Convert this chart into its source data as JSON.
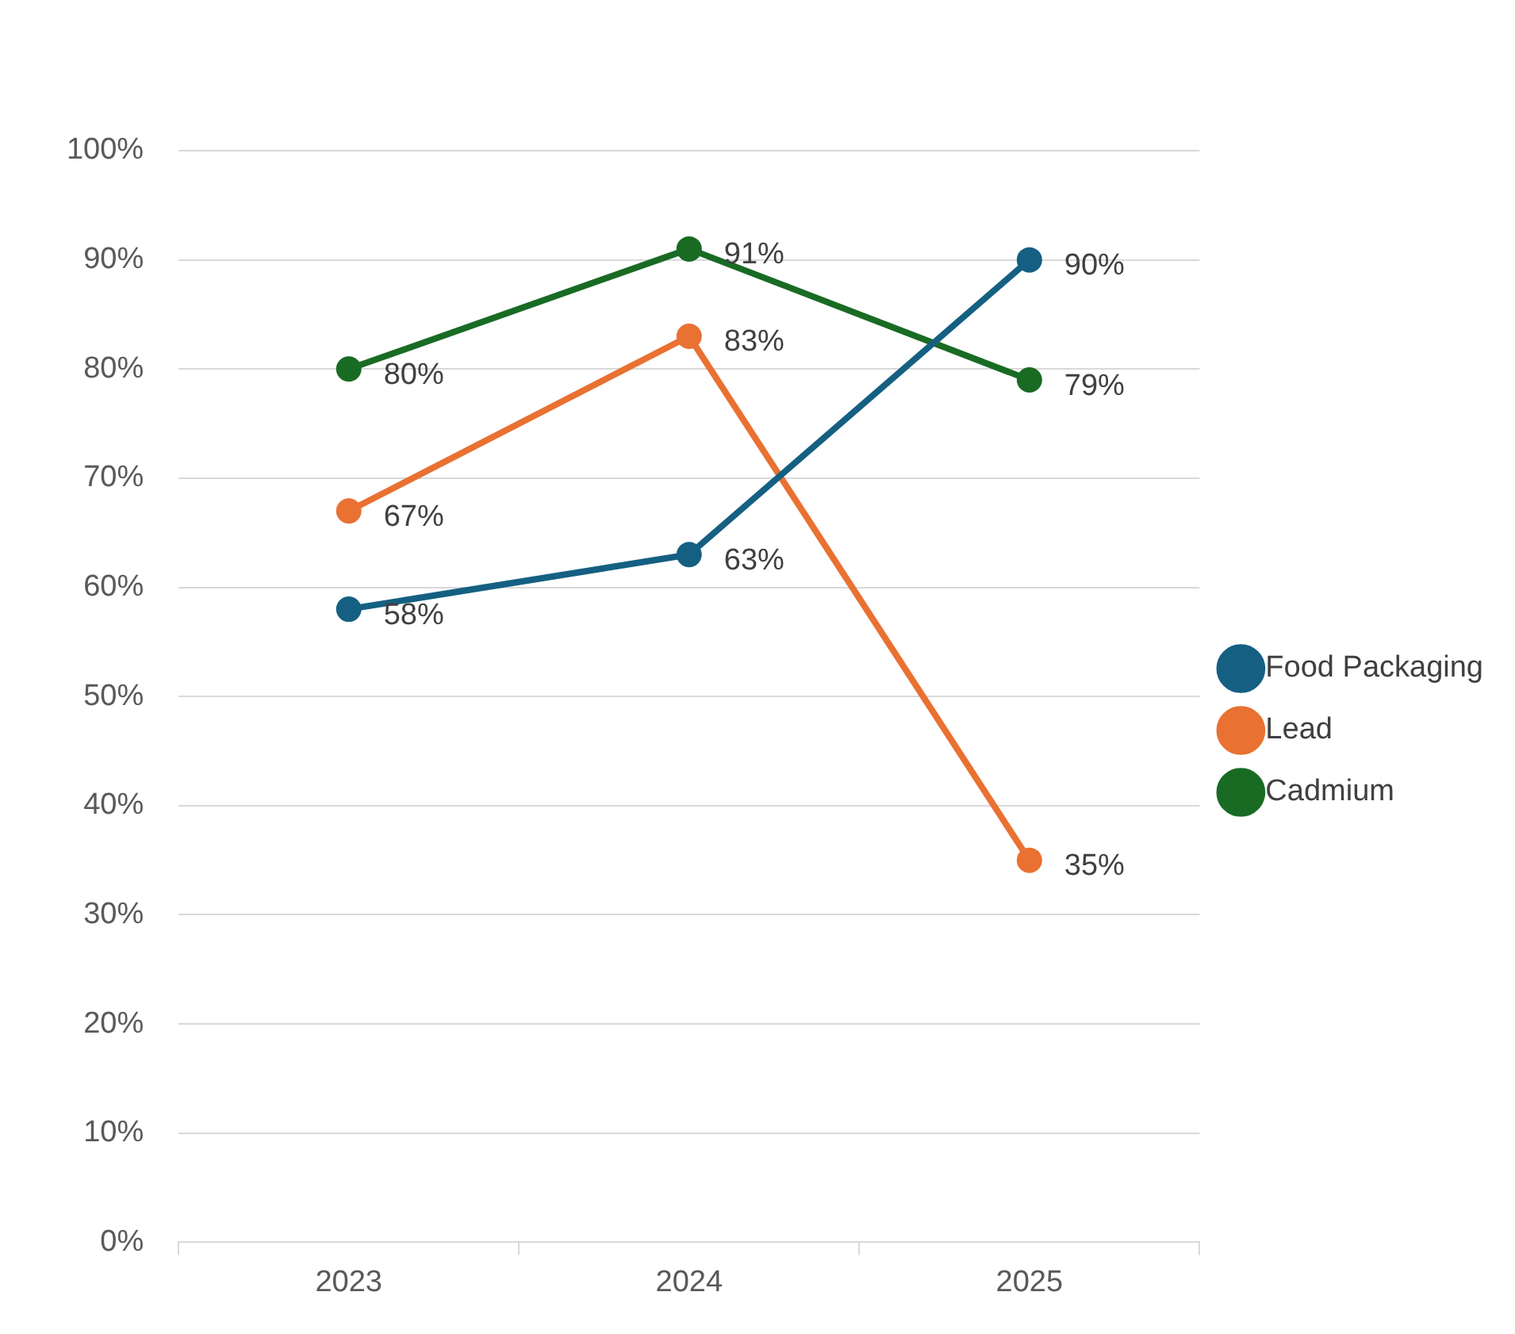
{
  "chart_data": {
    "type": "line",
    "categories": [
      "2023",
      "2024",
      "2025"
    ],
    "series": [
      {
        "name": "Food Packaging",
        "color": "#156082",
        "values": [
          58,
          63,
          90
        ],
        "value_labels": [
          "58%",
          "63%",
          "90%"
        ]
      },
      {
        "name": "Lead",
        "color": "#e97132",
        "values": [
          67,
          83,
          35
        ],
        "value_labels": [
          "67%",
          "83%",
          "35%"
        ]
      },
      {
        "name": "Cadmium",
        "color": "#196b24",
        "values": [
          80,
          91,
          79
        ],
        "value_labels": [
          "80%",
          "91%",
          "79%"
        ]
      }
    ],
    "ylim": [
      0,
      100
    ],
    "yticks": [
      {
        "value": 0,
        "label": "0%"
      },
      {
        "value": 10,
        "label": "10%"
      },
      {
        "value": 20,
        "label": "20%"
      },
      {
        "value": 30,
        "label": "30%"
      },
      {
        "value": 40,
        "label": "40%"
      },
      {
        "value": 50,
        "label": "50%"
      },
      {
        "value": 60,
        "label": "60%"
      },
      {
        "value": 70,
        "label": "70%"
      },
      {
        "value": 80,
        "label": "80%"
      },
      {
        "value": 90,
        "label": "90%"
      },
      {
        "value": 100,
        "label": "100%"
      }
    ],
    "grid": "y",
    "legend": "right",
    "marker": "circle",
    "line_style": "solid"
  }
}
